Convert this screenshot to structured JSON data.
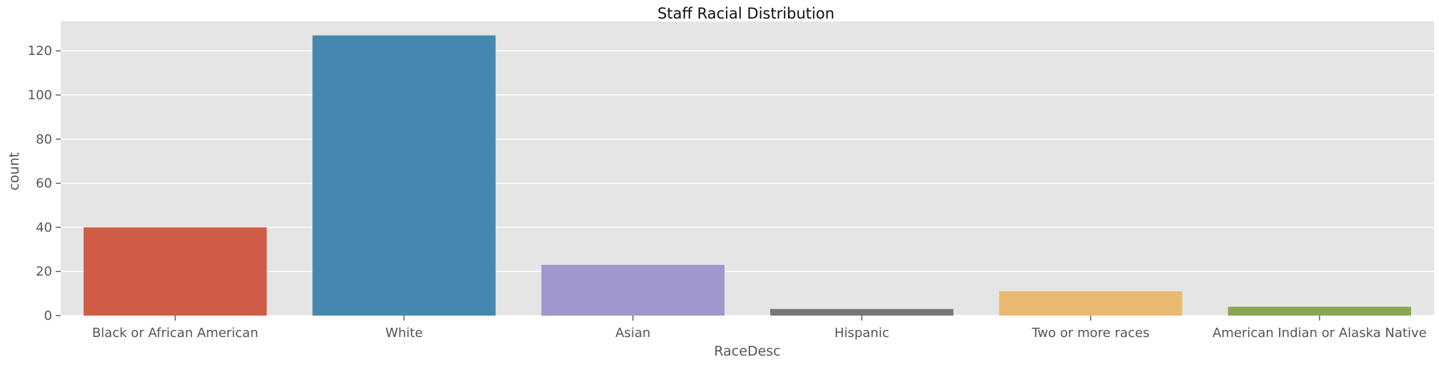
{
  "chart_data": {
    "type": "bar",
    "title": "Staff Racial Distribution",
    "xlabel": "RaceDesc",
    "ylabel": "count",
    "categories": [
      "Black or African American",
      "White",
      "Asian",
      "Hispanic",
      "Two or more races",
      "American Indian or Alaska Native"
    ],
    "values": [
      40,
      127,
      23,
      3,
      11,
      4
    ],
    "colors": [
      "#d05b47",
      "#4488b0",
      "#9e98cc",
      "#777777",
      "#e8b96f",
      "#8ca650"
    ],
    "ylim": [
      0,
      133.35
    ],
    "yticks": [
      0,
      20,
      40,
      60,
      80,
      100,
      120
    ],
    "grid": true,
    "legend": "none",
    "plot_background": "#e5e5e5",
    "grid_color": "#ffffff",
    "text_color": "#555555"
  }
}
